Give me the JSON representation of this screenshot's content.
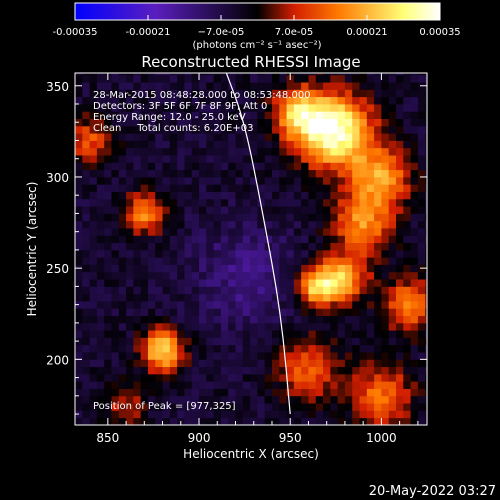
{
  "chart_data": {
    "type": "heatmap",
    "title": "Reconstructed RHESSI Image",
    "xlabel": "Heliocentric X (arcsec)",
    "ylabel": "Heliocentric Y (arcsec)",
    "xlim": [
      832,
      1025
    ],
    "ylim": [
      164,
      357
    ],
    "x_ticks": [
      "850",
      "900",
      "950",
      "1000"
    ],
    "x_tick_values": [
      850,
      900,
      950,
      1000
    ],
    "y_ticks": [
      "200",
      "250",
      "300",
      "350"
    ],
    "y_tick_values": [
      200,
      250,
      300,
      350
    ],
    "colorbar": {
      "ticks": [
        "-0.00035",
        "-0.00021",
        "−7.0e-05",
        "7.0e-05",
        "0.00021",
        "0.00035"
      ],
      "tick_values": [
        -0.00035,
        -0.00021,
        -7e-05,
        7e-05,
        0.00021,
        0.00035
      ],
      "range": [
        -0.00035,
        0.00035
      ],
      "label": "(photons cm⁻² s⁻¹ asec⁻²)",
      "colormap": [
        "#0000ff",
        "#5a1ebe",
        "#000000",
        "#d21e00",
        "#ff7800",
        "#ffff78",
        "#ffffff"
      ]
    },
    "annotations": [
      "28-Mar-2015 08:48:28.000 to 08:53:48.000",
      "Detectors: 3F 5F 6F 7F 8F 9F, Att 0",
      "Energy Range: 12.0 - 25.0 keV",
      "Clean     Total counts: 6.20E+03"
    ],
    "peak_label": "Position of Peak = [977,325]",
    "peak": [
      977,
      325
    ],
    "limb_curve": [
      [
        915,
        357
      ],
      [
        925,
        330
      ],
      [
        935,
        280
      ],
      [
        945,
        225
      ],
      [
        950,
        170
      ]
    ],
    "sources": [
      {
        "x": 975,
        "y": 325,
        "amp": 1.0,
        "sigma": 14
      },
      {
        "x": 955,
        "y": 335,
        "amp": 0.65,
        "sigma": 10
      },
      {
        "x": 1000,
        "y": 300,
        "amp": 0.6,
        "sigma": 11
      },
      {
        "x": 990,
        "y": 275,
        "amp": 0.55,
        "sigma": 12
      },
      {
        "x": 965,
        "y": 240,
        "amp": 0.75,
        "sigma": 8
      },
      {
        "x": 980,
        "y": 245,
        "amp": 0.6,
        "sigma": 9
      },
      {
        "x": 1015,
        "y": 230,
        "amp": 0.55,
        "sigma": 10
      },
      {
        "x": 960,
        "y": 195,
        "amp": 0.45,
        "sigma": 12
      },
      {
        "x": 1000,
        "y": 180,
        "amp": 0.5,
        "sigma": 12
      },
      {
        "x": 880,
        "y": 205,
        "amp": 0.8,
        "sigma": 8
      },
      {
        "x": 870,
        "y": 280,
        "amp": 0.55,
        "sigma": 8
      },
      {
        "x": 840,
        "y": 320,
        "amp": 0.4,
        "sigma": 9
      },
      {
        "x": 860,
        "y": 175,
        "amp": 0.3,
        "sigma": 8
      }
    ]
  },
  "footer": {
    "timestamp": "20-May-2022 03:27"
  }
}
